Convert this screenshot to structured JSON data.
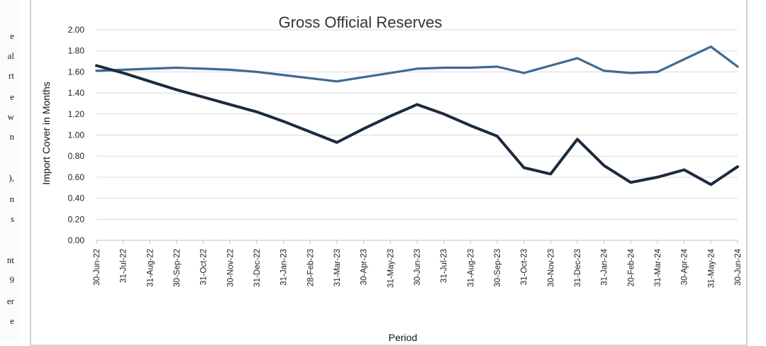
{
  "margin_fragments": [
    "e",
    "al",
    "rt",
    "e",
    "w",
    "n",
    "),",
    "n",
    "s",
    "nt",
    "9",
    "er",
    "e"
  ],
  "chart_data": {
    "type": "line",
    "title": "Gross Official Reserves",
    "xlabel": "Period",
    "ylabel": "Import Cover in Months",
    "ylim": [
      0,
      2.0
    ],
    "yticks": [
      "0.00",
      "0.20",
      "0.40",
      "0.60",
      "0.80",
      "1.00",
      "1.20",
      "1.40",
      "1.60",
      "1.80",
      "2.00"
    ],
    "grid": true,
    "categories": [
      "30-Jun-22",
      "31-Jul-22",
      "31-Aug-22",
      "30-Sep-22",
      "31-Oct-22",
      "30-Nov-22",
      "31-Dec-22",
      "31-Jan-23",
      "28-Feb-23",
      "31-Mar-23",
      "30-Apr-23",
      "31-May-23",
      "30-Jun-23",
      "31-Jul-23",
      "31-Aug-23",
      "30-Sep-23",
      "31-Oct-23",
      "30-Nov-23",
      "31-Dec-23",
      "31-Jan-24",
      "20-Feb-24",
      "31-Mar-24",
      "30-Apr-24",
      "31-May-24",
      "30-Jun-24"
    ],
    "series": [
      {
        "color": "#3d6a93",
        "values": [
          1.61,
          1.62,
          1.63,
          1.64,
          1.63,
          1.62,
          1.6,
          1.57,
          1.54,
          1.51,
          1.55,
          1.59,
          1.63,
          1.64,
          1.64,
          1.65,
          1.59,
          1.66,
          1.73,
          1.61,
          1.59,
          1.6,
          1.72,
          1.84,
          1.65
        ]
      },
      {
        "color": "#1c2a3f",
        "values": [
          1.66,
          1.59,
          1.51,
          1.43,
          1.36,
          1.29,
          1.22,
          1.13,
          1.03,
          0.93,
          1.06,
          1.18,
          1.29,
          1.2,
          1.09,
          0.99,
          0.69,
          0.63,
          0.96,
          0.71,
          0.55,
          0.6,
          0.67,
          0.53,
          0.7
        ]
      }
    ]
  }
}
